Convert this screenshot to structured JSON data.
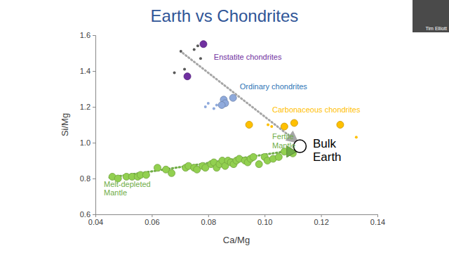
{
  "presenter": "Tim Elliott",
  "chart_data": {
    "type": "scatter",
    "title": "Earth vs Chondrites",
    "x_label": "Ca/Mg",
    "y_label": "Si/Mg",
    "xlim": [
      0.04,
      0.14
    ],
    "xticks": [
      0.04,
      0.06,
      0.08,
      {
        "value": 0.1,
        "label": "0.10"
      },
      0.12,
      0.14
    ],
    "ylim": [
      0.6,
      1.6
    ],
    "yticks": [
      0.6,
      0.8,
      {
        "value": 1,
        "label": "1.0"
      },
      1.2,
      1.4,
      1.6
    ],
    "grid": false,
    "series": [
      {
        "color": "#595959",
        "marker": "dot",
        "x": [
          0.068,
          0.0703,
          0.0716,
          0.075,
          0.0763,
          0.0773
        ],
        "values": [
          1.39,
          1.51,
          1.41,
          1.52,
          1.54,
          1.47
        ]
      },
      {
        "color": "#7030a0",
        "marker": "circle",
        "x": [
          0.0783,
          0.0726
        ],
        "values": [
          1.55,
          1.37
        ]
      },
      {
        "color": "#8faadc",
        "marker": "dot",
        "x": [
          0.079,
          0.08,
          0.082,
          0.083
        ],
        "values": [
          1.2,
          1.22,
          1.19,
          1.21
        ]
      },
      {
        "color": "#8faadc",
        "marker": "circle",
        "x": [
          0.0855,
          0.086,
          0.0848,
          0.0888
        ],
        "values": [
          1.24,
          1.22,
          1.21,
          1.25
        ]
      },
      {
        "color": "#ffc000",
        "marker": "dot",
        "x": [
          0.1012,
          0.1025,
          0.1325
        ],
        "values": [
          1.1,
          1.09,
          1.03
        ]
      },
      {
        "color": "#ffc000",
        "marker": "circle",
        "x": [
          0.0945,
          0.107,
          0.1105,
          0.1268
        ],
        "values": [
          1.1,
          1.09,
          1.11,
          1.1
        ]
      },
      {
        "color": "#92d050",
        "marker": "circle",
        "x": [
          0.046,
          0.048,
          0.051,
          0.053,
          0.055,
          0.056,
          0.058,
          0.062,
          0.065,
          0.067,
          0.072,
          0.073,
          0.075,
          0.076,
          0.078,
          0.079,
          0.081,
          0.082,
          0.083,
          0.084,
          0.085,
          0.086,
          0.087,
          0.088,
          0.089,
          0.09,
          0.091,
          0.093,
          0.094,
          0.095,
          0.096,
          0.098,
          0.1,
          0.101,
          0.103,
          0.105,
          0.107,
          0.11
        ],
        "values": [
          0.81,
          0.8,
          0.81,
          0.81,
          0.81,
          0.82,
          0.82,
          0.86,
          0.85,
          0.83,
          0.86,
          0.87,
          0.86,
          0.85,
          0.87,
          0.86,
          0.88,
          0.89,
          0.86,
          0.88,
          0.9,
          0.87,
          0.9,
          0.89,
          0.88,
          0.9,
          0.91,
          0.9,
          0.89,
          0.91,
          0.92,
          0.88,
          0.92,
          0.9,
          0.91,
          0.92,
          0.95,
          0.94
        ]
      },
      {
        "color": "#70ad47",
        "marker": "triangle",
        "x": [
          0.109
        ],
        "values": [
          0.95
        ]
      },
      {
        "color": "#000000",
        "marker": "open-circle",
        "x": [
          0.1125
        ],
        "values": [
          0.98
        ]
      }
    ],
    "trends": [
      {
        "color": "#a6a6a6",
        "line_style": "dotted",
        "x": [
          0.071,
          0.1115
        ],
        "y": [
          1.5,
          1.005
        ]
      },
      {
        "color": "#70ad47",
        "line_style": "dotted",
        "x": [
          0.045,
          0.107
        ],
        "y": [
          0.805,
          0.95
        ]
      }
    ],
    "annotations": [
      {
        "lines": [
          "Enstatite chondrites"
        ],
        "x": 0.082,
        "y": 1.475,
        "color": "#7030a0"
      },
      {
        "lines": [
          "Ordinary chondrites"
        ],
        "x": 0.0912,
        "y": 1.31,
        "color": "#2e75b6"
      },
      {
        "lines": [
          "Carbonaceous chondrites"
        ],
        "x": 0.1027,
        "y": 1.18,
        "color": "#ffc000"
      },
      {
        "lines": [
          "Bulk",
          "Earth"
        ],
        "x": 0.1171,
        "y": 0.992,
        "color": "#000000"
      },
      {
        "lines": [
          "Fertile",
          "Mantle"
        ],
        "x": 0.1027,
        "y": 1.031,
        "color": "#70ad47"
      },
      {
        "lines": [
          "Melt-depleted",
          "Mantle"
        ],
        "x": 0.043,
        "y": 0.765,
        "color": "#70ad47"
      }
    ]
  }
}
